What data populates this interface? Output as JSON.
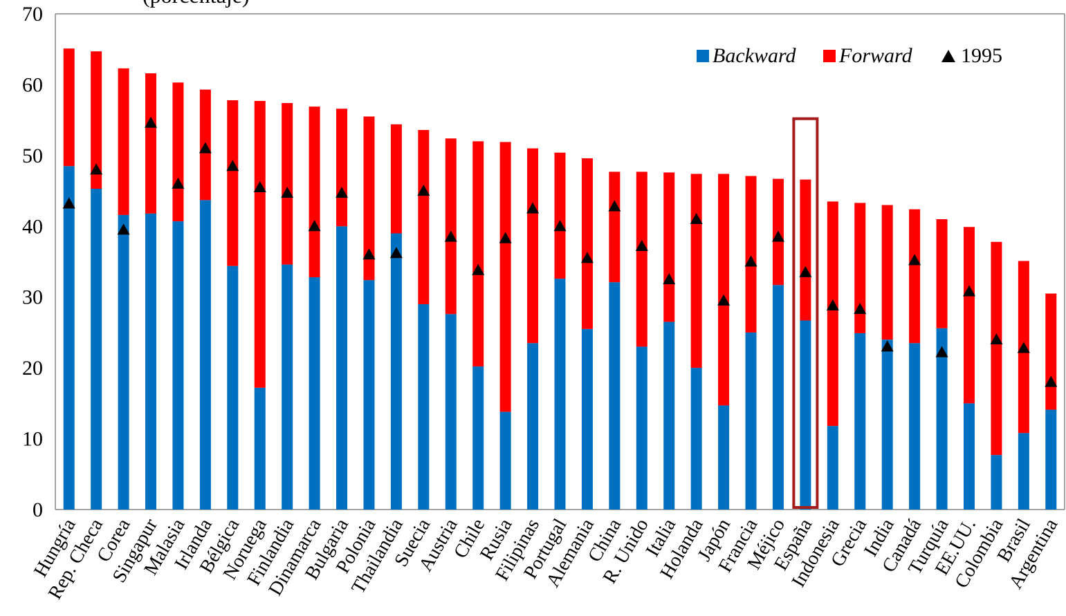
{
  "chart_data": {
    "type": "bar",
    "title": "(porcentaje)",
    "categories": [
      "Hungría",
      "Rep. Checa",
      "Corea",
      "Singapur",
      "Malasia",
      "Irlanda",
      "Bélgica",
      "Noruega",
      "Finlandia",
      "Dinamarca",
      "Bulgaria",
      "Polonia",
      "Thailandia",
      "Suecia",
      "Austria",
      "Chile",
      "Rusia",
      "Filipinas",
      "Portugal",
      "Alemania",
      "China",
      "R. Unido",
      "Italia",
      "Holanda",
      "Japón",
      "Francia",
      "Méjico",
      "España",
      "Indonesia",
      "Grecia",
      "India",
      "Canadá",
      "Turquía",
      "EE.UU.",
      "Colombia",
      "Brasil",
      "Argentina"
    ],
    "series": [
      {
        "name": "Backward",
        "color": "#0070c0",
        "values": [
          48.5,
          45.3,
          41.6,
          41.8,
          40.7,
          43.7,
          34.4,
          17.2,
          34.6,
          32.8,
          40.0,
          32.4,
          39.0,
          29.0,
          27.6,
          20.2,
          13.8,
          23.5,
          32.6,
          25.5,
          32.1,
          23.0,
          26.5,
          20.0,
          14.7,
          25.0,
          31.7,
          26.7,
          11.8,
          24.9,
          24.0,
          23.5,
          25.6,
          15.0,
          7.7,
          10.8,
          14.1
        ]
      },
      {
        "name": "Forward",
        "color": "#ff0000",
        "values": [
          16.6,
          19.4,
          20.7,
          19.8,
          19.6,
          15.6,
          23.4,
          40.5,
          22.8,
          24.1,
          16.6,
          23.1,
          15.4,
          24.6,
          24.8,
          31.8,
          38.1,
          27.5,
          17.8,
          24.1,
          15.6,
          24.7,
          21.1,
          27.4,
          32.7,
          22.1,
          15.0,
          19.9,
          31.7,
          18.4,
          19.0,
          18.9,
          15.4,
          24.9,
          30.1,
          24.3,
          16.4
        ]
      },
      {
        "name": "1995",
        "color": "#000000",
        "values": [
          43.2,
          48.0,
          39.5,
          54.6,
          46.0,
          51.0,
          48.5,
          45.5,
          44.7,
          40.0,
          44.7,
          36.0,
          36.2,
          45.0,
          38.5,
          33.8,
          38.3,
          42.5,
          40.0,
          35.5,
          42.8,
          37.2,
          32.5,
          41.0,
          29.5,
          35.0,
          38.5,
          33.5,
          28.8,
          28.3,
          23.0,
          35.2,
          22.2,
          30.8,
          24.0,
          22.8,
          18.0
        ]
      }
    ],
    "ylim": [
      0,
      70
    ],
    "yticks": [
      0,
      10,
      20,
      30,
      40,
      50,
      60,
      70
    ],
    "highlighted_category": "España",
    "legend_position": "top-right",
    "grid": false
  },
  "legend": {
    "backward_label": "Backward",
    "forward_label": "Forward",
    "marker_label": "1995"
  }
}
